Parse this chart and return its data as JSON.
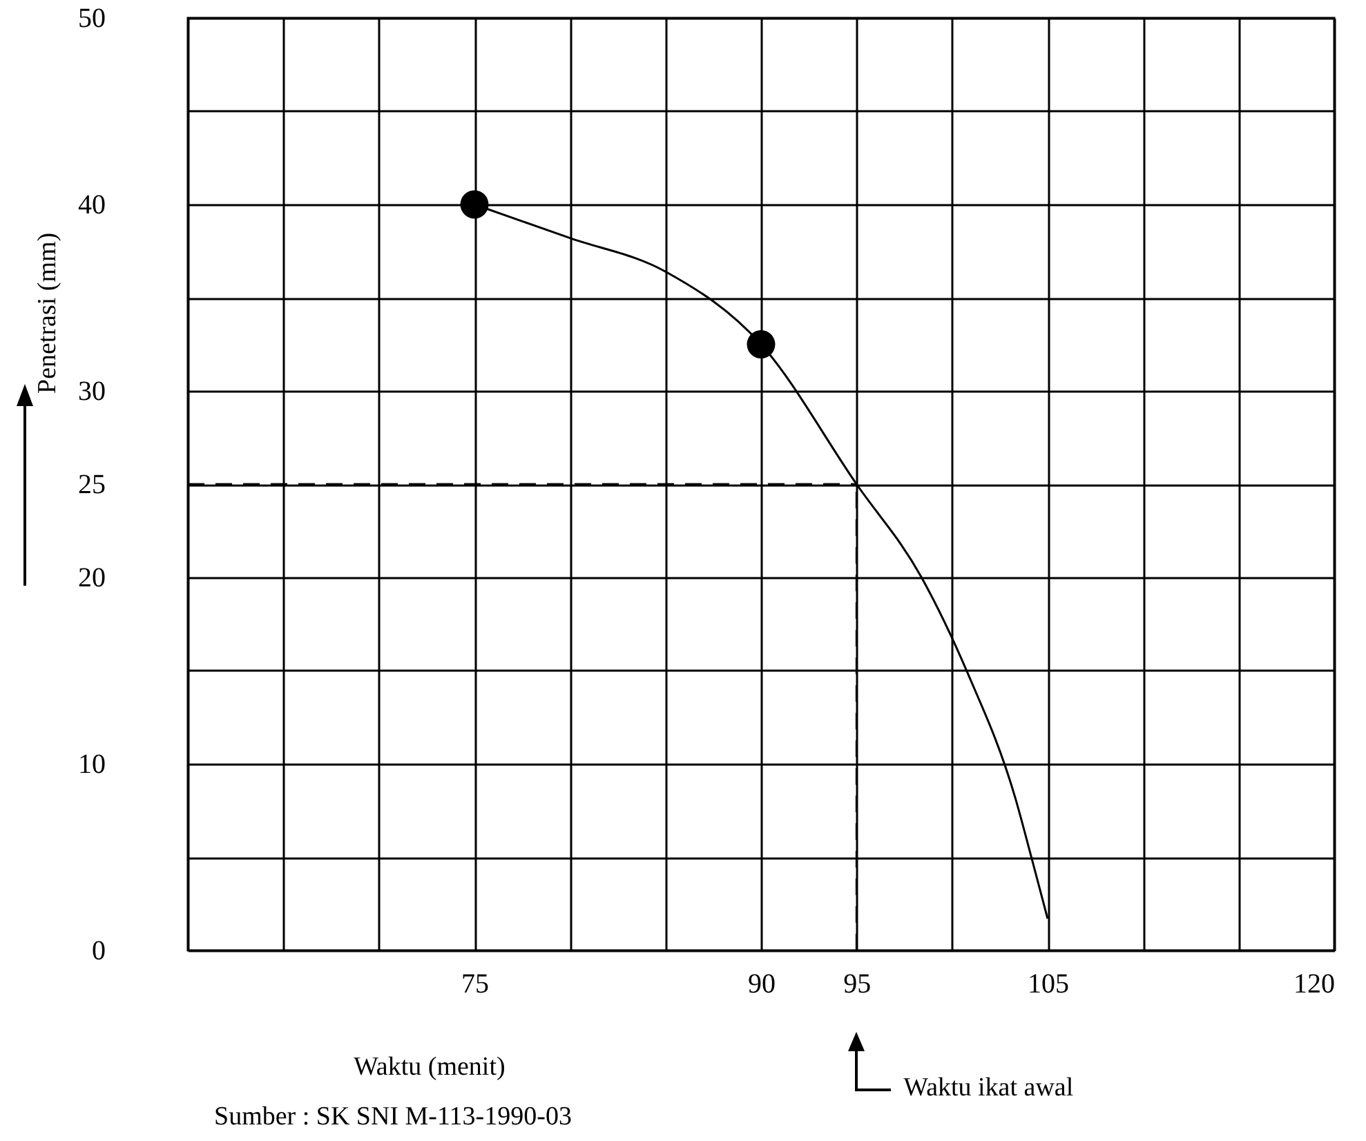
{
  "chart_data": {
    "type": "line",
    "xlabel": "Waktu (menit)",
    "ylabel": "Penetrasi (mm)",
    "annotations": [
      "Waktu ikat awal",
      "Sumber : SK SNI M-113-1990-03"
    ],
    "series": [
      {
        "color": "#000000",
        "marker": "none",
        "x": [
          75,
          80,
          85,
          90,
          95,
          98.4,
          100.8,
          103.3,
          104.2,
          105
        ],
        "values": [
          40,
          38.2,
          36.4,
          32.5,
          25,
          20,
          14.9,
          8.2,
          4.8,
          1.7
        ]
      },
      {
        "type": "scatter",
        "color": "#000000",
        "marker": "circle",
        "x": [
          75,
          90
        ],
        "values": [
          40,
          32.5
        ]
      }
    ],
    "xlim": [
      60,
      120
    ],
    "ylim": [
      0,
      50
    ],
    "xticks": [
      {
        "value": 60,
        "label": null
      },
      {
        "value": 65,
        "label": null
      },
      {
        "value": 70,
        "label": null
      },
      75,
      {
        "value": 80,
        "label": null
      },
      {
        "value": 85,
        "label": null
      },
      90,
      95,
      {
        "value": 100,
        "label": null
      },
      105,
      {
        "value": 110,
        "label": null
      },
      {
        "value": 115,
        "label": null
      },
      120
    ],
    "yticks": [
      0,
      {
        "value": 5,
        "label": null
      },
      10,
      {
        "value": 15,
        "label": null
      },
      20,
      25,
      30,
      {
        "value": 35,
        "label": null
      },
      40,
      {
        "value": 45,
        "label": null
      },
      50
    ],
    "ref_lines": [
      {
        "axis": "y",
        "value": 25,
        "color": "#000000",
        "line_style": "dashed"
      },
      {
        "axis": "x",
        "value": 95,
        "color": "#000000",
        "line_style": "dashed"
      }
    ],
    "grid": true
  }
}
